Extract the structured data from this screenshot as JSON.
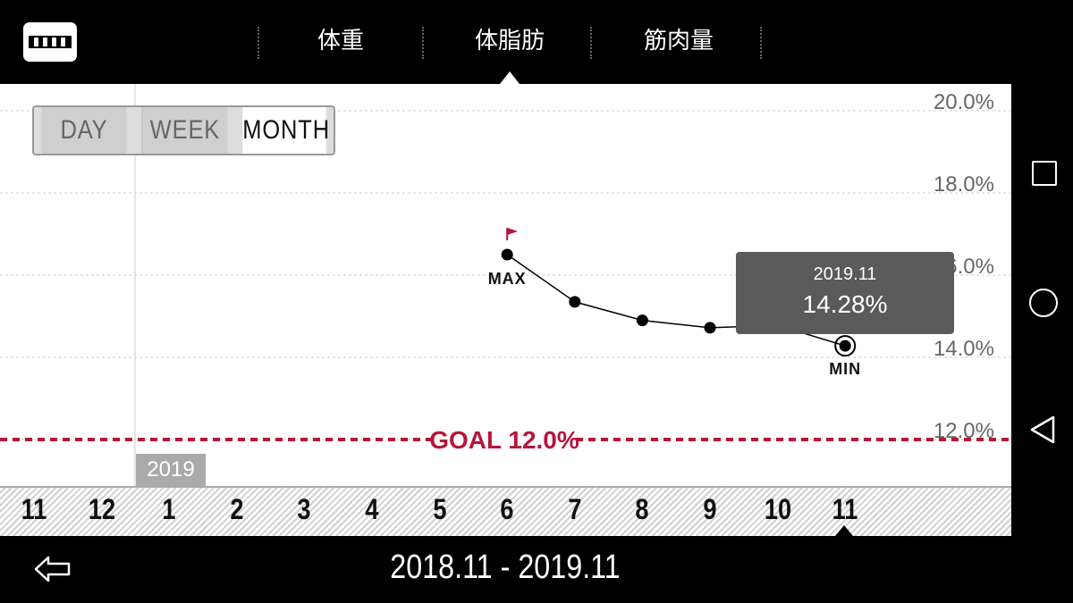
{
  "header": {
    "logo_icon": "scale-logo-icon",
    "tabs": [
      {
        "label": "体重",
        "active": false
      },
      {
        "label": "体脂肪",
        "active": true
      },
      {
        "label": "筋肉量",
        "active": false
      }
    ]
  },
  "period_selector": {
    "options": [
      "DAY",
      "WEEK",
      "MONTH"
    ],
    "selected": "MONTH"
  },
  "tooltip": {
    "date": "2019.11",
    "value": "14.28%"
  },
  "year_tag": "2019",
  "range_label": "2018.11 - 2019.11",
  "colors": {
    "accent": "#b5163c",
    "tooltip": "#5a5a5a"
  },
  "chart_data": {
    "type": "line",
    "x": [
      "11",
      "12",
      "1",
      "2",
      "3",
      "4",
      "5",
      "6",
      "7",
      "8",
      "9",
      "10",
      "11"
    ],
    "series": [
      {
        "values": [
          null,
          null,
          null,
          null,
          null,
          null,
          null,
          16.5,
          15.35,
          14.9,
          14.72,
          14.78,
          14.28
        ]
      }
    ],
    "y_tick_labels": [
      "20.0%",
      "18.0%",
      "16.0%",
      "14.0%",
      "12.0%"
    ],
    "ylim": [
      11.0,
      21.0
    ],
    "max_label": "MAX",
    "min_label": "MIN",
    "goal": {
      "value": 12.0,
      "label": "GOAL 12.0%"
    },
    "grid": true
  }
}
